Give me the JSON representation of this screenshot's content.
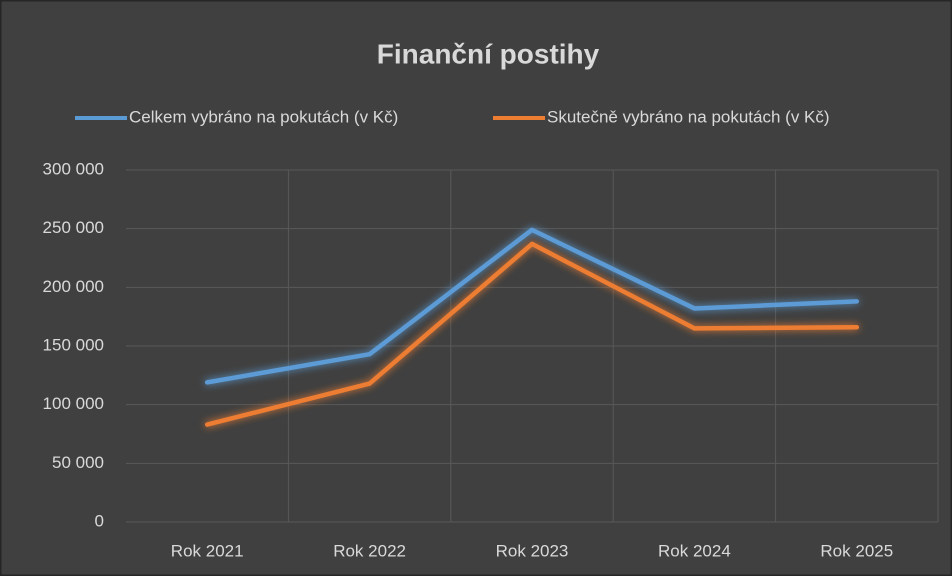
{
  "chart_data": {
    "type": "line",
    "title": "Finanční postihy",
    "categories": [
      "Rok 2021",
      "Rok 2022",
      "Rok 2023",
      "Rok 2024",
      "Rok 2025"
    ],
    "series": [
      {
        "name": "Celkem vybráno na pokutách (v Kč)",
        "color": "#5b9bd5",
        "values": [
          119000,
          143000,
          249000,
          182000,
          188000
        ]
      },
      {
        "name": "Skutečně vybráno na pokutách (v Kč)",
        "color": "#ed7d31",
        "values": [
          83000,
          118000,
          237000,
          165000,
          166000
        ]
      }
    ],
    "ylim": [
      0,
      300000
    ],
    "yticks": [
      0,
      {
        "value": 50000,
        "label": "50 000"
      },
      {
        "value": 100000,
        "label": "100 000"
      },
      {
        "value": 150000,
        "label": "150 000"
      },
      {
        "value": 200000,
        "label": "200 000"
      },
      {
        "value": 250000,
        "label": "250 000"
      },
      {
        "value": 300000,
        "label": "300 000"
      }
    ],
    "grid": true,
    "legend": "top"
  }
}
